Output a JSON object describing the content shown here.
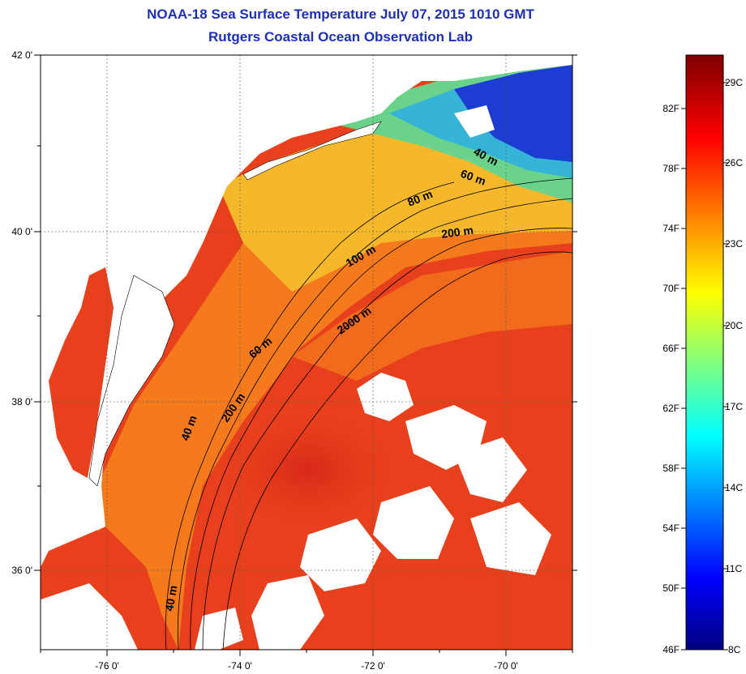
{
  "header": {
    "title_line1": "NOAA-18 Sea Surface Temperature July 07, 2015 1010 GMT",
    "title_line2": "Rutgers Coastal Ocean Observation Lab"
  },
  "map": {
    "lon_ticks": [
      "-76 0'",
      "-74 0'",
      "-72 0'",
      "-70 0'"
    ],
    "lat_ticks": [
      "42 0'",
      "40 0'",
      "38 0'",
      "36 0'"
    ],
    "contour_labels": [
      "40 m",
      "60 m",
      "80 m",
      "200 m",
      "100 m",
      "2000 m",
      "60 m",
      "200 m",
      "40 m",
      "40 m"
    ],
    "colors": {
      "land": "#ffffff",
      "warm_ocean": "#e8401c",
      "shelf": "#f47a1c",
      "cool": "#f4c21c",
      "cold": "#46c8c0",
      "coldest": "#1c3cd2"
    }
  },
  "colorbar": {
    "fahrenheit": [
      "82F",
      "78F",
      "74F",
      "70F",
      "66F",
      "62F",
      "58F",
      "54F",
      "50F",
      "46F"
    ],
    "celsius": [
      "29C",
      "26C",
      "23C",
      "20C",
      "17C",
      "14C",
      "11C",
      "8C"
    ]
  }
}
